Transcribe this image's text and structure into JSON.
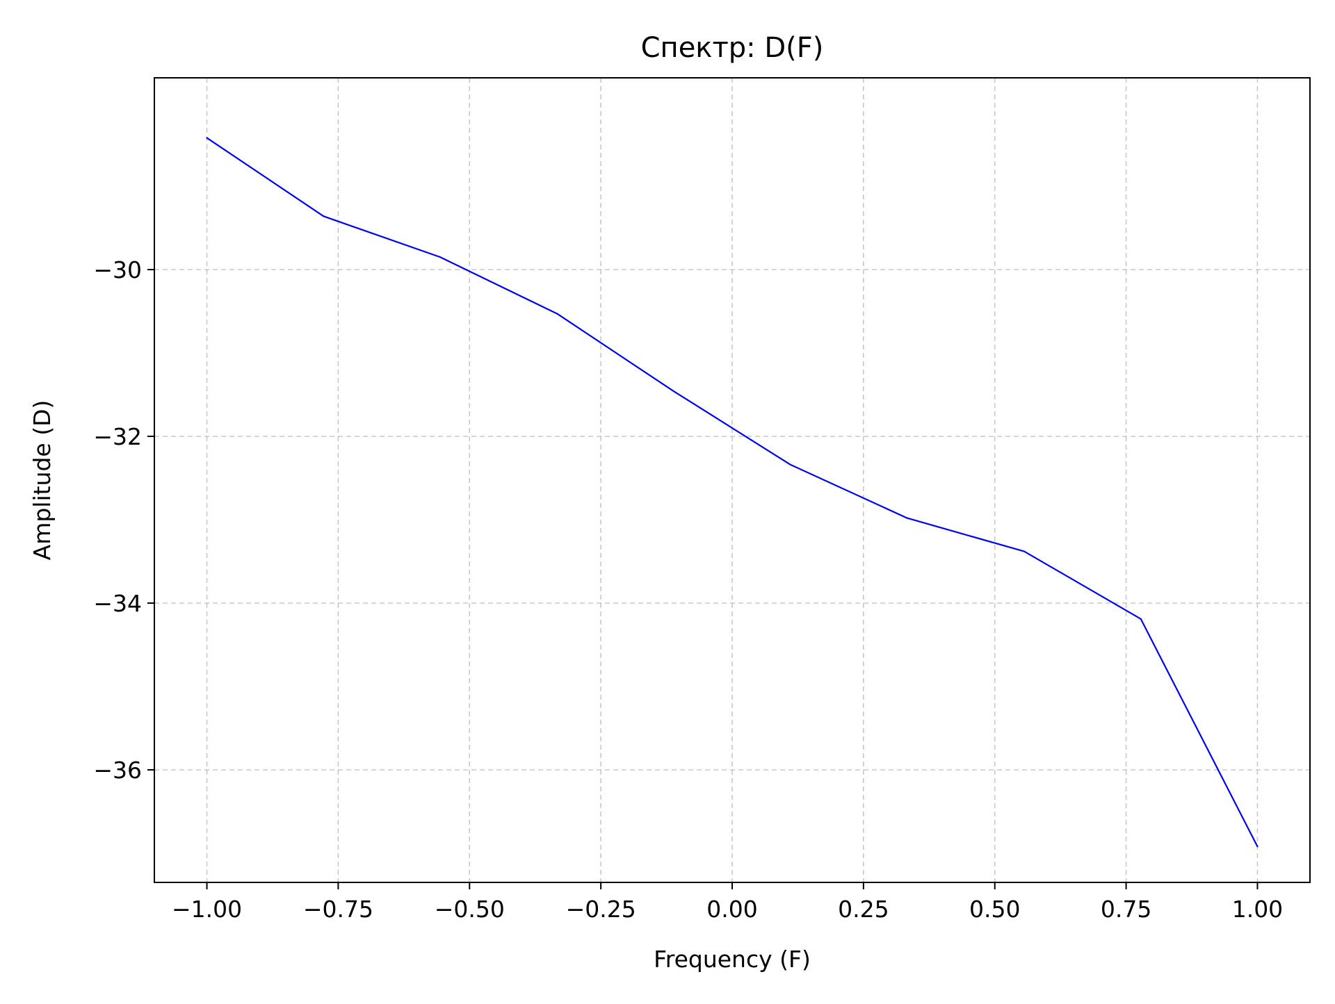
{
  "chart_data": {
    "type": "line",
    "title": "Спектр: D(F)",
    "xlabel": "Frequency (F)",
    "ylabel": "Amplitude (D)",
    "xlim": [
      -1.1,
      1.1
    ],
    "ylim": [
      -37.35,
      -27.7
    ],
    "grid": true,
    "x_ticks": [
      -1.0,
      -0.75,
      -0.5,
      -0.25,
      0.0,
      0.25,
      0.5,
      0.75,
      1.0
    ],
    "x_tick_labels": [
      "−1.00",
      "−0.75",
      "−0.50",
      "−0.25",
      "0.00",
      "0.25",
      "0.50",
      "0.75",
      "1.00"
    ],
    "y_ticks": [
      -30,
      -32,
      -34,
      -36
    ],
    "y_tick_labels": [
      "−30",
      "−32",
      "−34",
      "−36"
    ],
    "series": [
      {
        "color": "#0000ff",
        "x": [
          -1.0,
          -0.778,
          -0.556,
          -0.333,
          -0.111,
          0.111,
          0.333,
          0.556,
          0.778,
          1.0
        ],
        "y": [
          -28.42,
          -29.36,
          -29.85,
          -30.53,
          -31.46,
          -32.34,
          -32.98,
          -33.38,
          -34.19,
          -36.92
        ]
      }
    ]
  }
}
